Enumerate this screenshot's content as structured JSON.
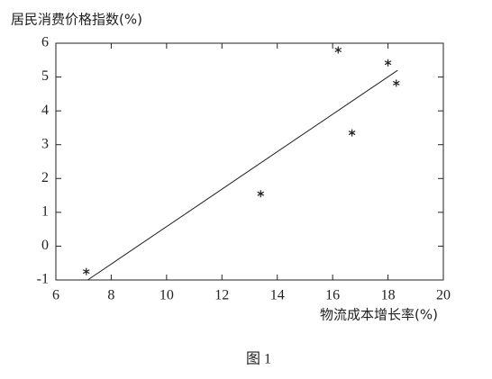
{
  "chart_data": {
    "type": "scatter",
    "ylabel": "居民消费价格指数(%)",
    "xlabel": "物流成本增长率(%)",
    "caption": "图 1",
    "x": [
      7.1,
      13.4,
      16.2,
      16.7,
      18.0,
      18.3
    ],
    "values": [
      -0.75,
      1.55,
      5.8,
      3.35,
      5.42,
      4.82
    ],
    "color": "#222222",
    "trend_line": {
      "x": [
        7.15,
        18.35
      ],
      "values": [
        -1,
        5.2
      ]
    },
    "xlim": [
      6,
      20
    ],
    "xticks": [
      6,
      8,
      10,
      12,
      14,
      16,
      18,
      20
    ],
    "ylim": [
      -1,
      6
    ],
    "yticks": [
      -1,
      0,
      1,
      2,
      3,
      4,
      5,
      6
    ]
  }
}
